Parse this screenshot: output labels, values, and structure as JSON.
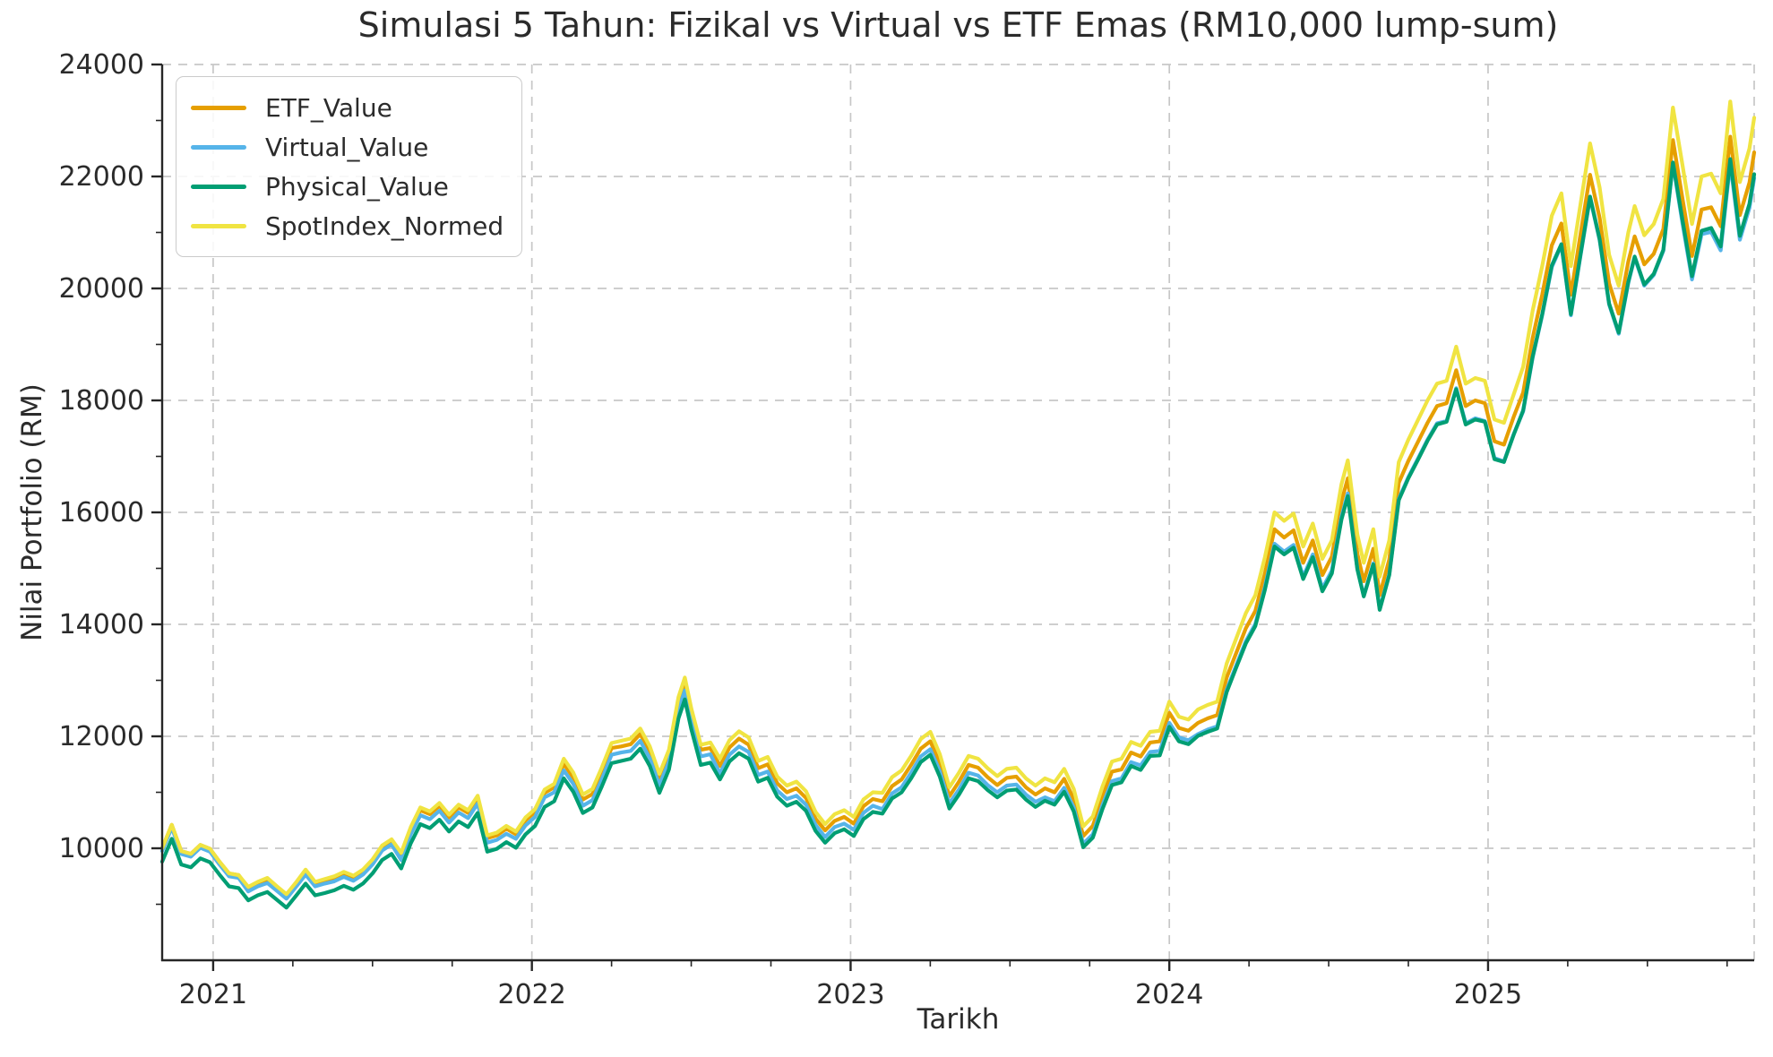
{
  "title": "Simulasi 5 Tahun: Fizikal vs Virtual vs ETF Emas (RM10,000 lump-sum)",
  "axes": {
    "xlabel": "Tarikh",
    "ylabel": "Nilai Portfolio (RM)",
    "xlim": [
      2020.84,
      2025.835
    ],
    "ylim": [
      8000,
      24000
    ],
    "x_major_ticks": [
      {
        "value": 2021,
        "label": "2021"
      },
      {
        "value": 2022,
        "label": "2022"
      },
      {
        "value": 2023,
        "label": "2023"
      },
      {
        "value": 2024,
        "label": "2024"
      },
      {
        "value": 2025,
        "label": "2025"
      }
    ],
    "x_minor_ticks": [
      2021.25,
      2021.5,
      2021.75,
      2022.25,
      2022.5,
      2022.75,
      2023.25,
      2023.5,
      2023.75,
      2024.25,
      2024.5,
      2024.75,
      2025.25,
      2025.5,
      2025.75
    ],
    "y_major_ticks": [
      {
        "value": 10000,
        "label": "10000"
      },
      {
        "value": 12000,
        "label": "12000"
      },
      {
        "value": 14000,
        "label": "14000"
      },
      {
        "value": 16000,
        "label": "16000"
      },
      {
        "value": 18000,
        "label": "18000"
      },
      {
        "value": 20000,
        "label": "20000"
      },
      {
        "value": 22000,
        "label": "22000"
      },
      {
        "value": 24000,
        "label": "24000"
      }
    ],
    "y_minor_ticks": [
      9000,
      11000,
      13000,
      15000,
      17000,
      19000,
      21000,
      23000
    ],
    "extra_x_gridlines": [
      2025.835
    ],
    "grid_style": "dashed"
  },
  "legend": {
    "position": "upper-left",
    "items": [
      {
        "label": "ETF_Value",
        "color": "#E69F00"
      },
      {
        "label": "Virtual_Value",
        "color": "#56B4E9"
      },
      {
        "label": "Physical_Value",
        "color": "#009E73"
      },
      {
        "label": "SpotIndex_Normed",
        "color": "#F0E442"
      }
    ]
  },
  "colors": {
    "background": "#ffffff",
    "grid": "#c7c7c7",
    "spine": "#262626",
    "text": "#2b2b2b"
  },
  "chart_data": {
    "type": "line",
    "title": "Simulasi 5 Tahun: Fizikal vs Virtual vs ETF Emas (RM10,000 lump-sum)",
    "xlabel": "Tarikh",
    "ylabel": "Nilai Portfolio (RM)",
    "xlim": [
      2020.84,
      2025.835
    ],
    "ylim": [
      8000,
      24000
    ],
    "x_unit": "decimal_year",
    "grid": true,
    "legend_position": "upper left",
    "x": [
      2020.84,
      2020.87,
      2020.9,
      2020.93,
      2020.96,
      2020.99,
      2021.02,
      2021.05,
      2021.08,
      2021.11,
      2021.14,
      2021.17,
      2021.2,
      2021.23,
      2021.26,
      2021.29,
      2021.32,
      2021.35,
      2021.38,
      2021.41,
      2021.44,
      2021.47,
      2021.5,
      2021.53,
      2021.56,
      2021.59,
      2021.62,
      2021.65,
      2021.68,
      2021.71,
      2021.74,
      2021.77,
      2021.8,
      2021.83,
      2021.86,
      2021.89,
      2021.92,
      2021.95,
      2021.98,
      2022.01,
      2022.04,
      2022.07,
      2022.1,
      2022.13,
      2022.16,
      2022.19,
      2022.22,
      2022.25,
      2022.28,
      2022.31,
      2022.34,
      2022.37,
      2022.4,
      2022.43,
      2022.46,
      2022.48,
      2022.5,
      2022.53,
      2022.56,
      2022.59,
      2022.62,
      2022.65,
      2022.68,
      2022.71,
      2022.74,
      2022.77,
      2022.8,
      2022.83,
      2022.86,
      2022.89,
      2022.92,
      2022.95,
      2022.98,
      2023.01,
      2023.04,
      2023.07,
      2023.1,
      2023.13,
      2023.16,
      2023.19,
      2023.22,
      2023.25,
      2023.28,
      2023.31,
      2023.34,
      2023.37,
      2023.4,
      2023.43,
      2023.46,
      2023.49,
      2023.52,
      2023.55,
      2023.58,
      2023.61,
      2023.64,
      2023.67,
      2023.7,
      2023.73,
      2023.76,
      2023.79,
      2023.82,
      2023.85,
      2023.88,
      2023.91,
      2023.94,
      2023.97,
      2024.0,
      2024.03,
      2024.06,
      2024.09,
      2024.12,
      2024.15,
      2024.18,
      2024.21,
      2024.24,
      2024.27,
      2024.3,
      2024.33,
      2024.36,
      2024.39,
      2024.42,
      2024.45,
      2024.48,
      2024.51,
      2024.54,
      2024.56,
      2024.59,
      2024.61,
      2024.64,
      2024.66,
      2024.69,
      2024.72,
      2024.75,
      2024.78,
      2024.81,
      2024.84,
      2024.87,
      2024.9,
      2024.93,
      2024.96,
      2024.99,
      2025.02,
      2025.05,
      2025.08,
      2025.11,
      2025.14,
      2025.17,
      2025.2,
      2025.23,
      2025.26,
      2025.29,
      2025.32,
      2025.35,
      2025.38,
      2025.41,
      2025.44,
      2025.46,
      2025.49,
      2025.52,
      2025.55,
      2025.58,
      2025.61,
      2025.64,
      2025.67,
      2025.7,
      2025.73,
      2025.76,
      2025.79,
      2025.82,
      2025.835
    ],
    "series": [
      {
        "name": "ETF_Value",
        "color": "#E69F00",
        "values": [
          10000,
          10420,
          9950,
          9900,
          10060,
          9990,
          9760,
          9550,
          9520,
          9280,
          9370,
          9440,
          9290,
          9150,
          9360,
          9590,
          9370,
          9420,
          9470,
          9550,
          9480,
          9590,
          9770,
          10020,
          10130,
          9870,
          10330,
          10680,
          10610,
          10760,
          10550,
          10730,
          10630,
          10890,
          10180,
          10230,
          10350,
          10250,
          10500,
          10650,
          10990,
          11090,
          11510,
          11260,
          10870,
          10970,
          11360,
          11790,
          11820,
          11860,
          12040,
          11730,
          11240,
          11670,
          12600,
          12950,
          12400,
          11760,
          11790,
          11470,
          11800,
          11960,
          11850,
          11430,
          11500,
          11160,
          11000,
          11070,
          10900,
          10530,
          10320,
          10490,
          10560,
          10440,
          10750,
          10880,
          10840,
          11110,
          11230,
          11490,
          11780,
          11910,
          11520,
          10930,
          11190,
          11490,
          11440,
          11270,
          11130,
          11260,
          11280,
          11090,
          10960,
          11070,
          11000,
          11240,
          10880,
          10220,
          10400,
          10920,
          11370,
          11410,
          11710,
          11640,
          11890,
          11910,
          12420,
          12150,
          12100,
          12240,
          12320,
          12380,
          13050,
          13490,
          13930,
          14240,
          14910,
          15700,
          15550,
          15680,
          15100,
          15500,
          14880,
          15210,
          16190,
          16610,
          15260,
          14770,
          15350,
          14520,
          15160,
          16530,
          16920,
          17260,
          17600,
          17900,
          17950,
          18540,
          17900,
          18000,
          17950,
          17270,
          17210,
          17700,
          18140,
          19110,
          19890,
          20770,
          21160,
          19890,
          20960,
          22030,
          21260,
          20090,
          19550,
          20480,
          20930,
          20430,
          20620,
          21060,
          22650,
          21600,
          20580,
          21410,
          21450,
          21110,
          22710,
          21310,
          21890,
          22430
        ]
      },
      {
        "name": "Virtual_Value",
        "color": "#56B4E9",
        "values": [
          9950,
          10370,
          9900,
          9850,
          10010,
          9940,
          9710,
          9500,
          9470,
          9230,
          9320,
          9380,
          9240,
          9100,
          9310,
          9530,
          9320,
          9370,
          9410,
          9490,
          9420,
          9530,
          9710,
          9960,
          10070,
          9790,
          10250,
          10590,
          10520,
          10670,
          10460,
          10640,
          10540,
          10800,
          10100,
          10150,
          10260,
          10170,
          10410,
          10560,
          10910,
          11000,
          11390,
          11150,
          10760,
          10860,
          11240,
          11670,
          11710,
          11740,
          11920,
          11610,
          11130,
          11550,
          12470,
          12820,
          12280,
          11640,
          11680,
          11340,
          11670,
          11820,
          11720,
          11310,
          11370,
          11030,
          10880,
          10940,
          10780,
          10420,
          10200,
          10380,
          10440,
          10330,
          10630,
          10760,
          10700,
          10980,
          11090,
          11350,
          11640,
          11770,
          11380,
          10800,
          11050,
          11350,
          11300,
          11130,
          11000,
          11120,
          11140,
          10960,
          10830,
          10910,
          10840,
          11080,
          10730,
          10080,
          10250,
          10770,
          11200,
          11250,
          11540,
          11480,
          11720,
          11740,
          12240,
          11980,
          11930,
          12040,
          12120,
          12180,
          12830,
          13270,
          13700,
          14010,
          14670,
          15440,
          15300,
          15420,
          14850,
          15250,
          14640,
          14960,
          15920,
          16340,
          14990,
          14510,
          15090,
          14270,
          14900,
          16240,
          16630,
          16960,
          17300,
          17590,
          17630,
          18220,
          17590,
          17680,
          17630,
          16970,
          16910,
          17390,
          17800,
          18760,
          19520,
          20380,
          20770,
          19520,
          20580,
          21620,
          20860,
          19710,
          19190,
          20100,
          20550,
          20050,
          20240,
          20670,
          22230,
          21160,
          20160,
          20970,
          21010,
          20680,
          22240,
          20870,
          21440,
          21970
        ]
      },
      {
        "name": "Physical_Value",
        "color": "#009E73",
        "values": [
          9760,
          10170,
          9710,
          9660,
          9820,
          9750,
          9530,
          9320,
          9290,
          9070,
          9160,
          9220,
          9080,
          8940,
          9150,
          9370,
          9160,
          9200,
          9250,
          9330,
          9260,
          9370,
          9550,
          9790,
          9900,
          9640,
          10090,
          10430,
          10360,
          10510,
          10300,
          10480,
          10380,
          10630,
          9940,
          9990,
          10110,
          10010,
          10250,
          10400,
          10740,
          10840,
          11250,
          11010,
          10630,
          10730,
          11110,
          11520,
          11560,
          11600,
          11780,
          11470,
          10990,
          11410,
          12320,
          12660,
          12130,
          11490,
          11530,
          11230,
          11550,
          11700,
          11600,
          11190,
          11260,
          10920,
          10760,
          10830,
          10670,
          10310,
          10100,
          10270,
          10340,
          10220,
          10520,
          10650,
          10620,
          10890,
          11000,
          11250,
          11540,
          11670,
          11280,
          10710,
          10960,
          11250,
          11200,
          11040,
          10910,
          11030,
          11050,
          10870,
          10740,
          10850,
          10780,
          11010,
          10660,
          10020,
          10190,
          10700,
          11130,
          11180,
          11470,
          11400,
          11650,
          11660,
          12170,
          11910,
          11860,
          12010,
          12080,
          12140,
          12790,
          13230,
          13660,
          13970,
          14620,
          15390,
          15250,
          15370,
          14810,
          15200,
          14590,
          14910,
          15870,
          16290,
          14980,
          14500,
          15070,
          14260,
          14880,
          16220,
          16610,
          16940,
          17280,
          17570,
          17620,
          18200,
          17570,
          17660,
          17620,
          16950,
          16900,
          17380,
          17820,
          18780,
          19540,
          20410,
          20790,
          19540,
          20600,
          21640,
          20880,
          19730,
          19210,
          20120,
          20570,
          20070,
          20260,
          20690,
          22250,
          21220,
          20220,
          21030,
          21080,
          20750,
          22310,
          20940,
          21510,
          22040
        ]
      },
      {
        "name": "SpotIndex_Normed",
        "color": "#F0E442",
        "values": [
          10000,
          10420,
          9950,
          9900,
          10060,
          9990,
          9760,
          9550,
          9520,
          9310,
          9400,
          9470,
          9320,
          9180,
          9390,
          9620,
          9400,
          9450,
          9500,
          9580,
          9510,
          9620,
          9800,
          10050,
          10160,
          9920,
          10380,
          10730,
          10660,
          10810,
          10600,
          10780,
          10680,
          10940,
          10230,
          10280,
          10400,
          10300,
          10550,
          10700,
          11050,
          11150,
          11600,
          11350,
          10960,
          11060,
          11450,
          11880,
          11920,
          11960,
          12140,
          11820,
          11330,
          11760,
          12700,
          13050,
          12500,
          11850,
          11890,
          11600,
          11930,
          12090,
          11980,
          11560,
          11630,
          11280,
          11120,
          11190,
          11020,
          10650,
          10430,
          10610,
          10680,
          10560,
          10870,
          11000,
          10990,
          11270,
          11390,
          11650,
          11950,
          12080,
          11680,
          11090,
          11350,
          11650,
          11600,
          11430,
          11290,
          11420,
          11440,
          11250,
          11120,
          11250,
          11180,
          11420,
          11060,
          10390,
          10570,
          11100,
          11550,
          11600,
          11900,
          11830,
          12080,
          12100,
          12620,
          12350,
          12300,
          12480,
          12560,
          12620,
          13300,
          13750,
          14200,
          14520,
          15200,
          16000,
          15850,
          15980,
          15390,
          15800,
          15170,
          15500,
          16500,
          16930,
          15600,
          15100,
          15700,
          14850,
          15500,
          16900,
          17300,
          17650,
          18000,
          18300,
          18350,
          18960,
          18300,
          18400,
          18350,
          17660,
          17600,
          18100,
          18600,
          19600,
          20400,
          21300,
          21700,
          20400,
          21500,
          22590,
          21800,
          20600,
          20050,
          21000,
          21470,
          20950,
          21150,
          21600,
          23230,
          22200,
          21150,
          22000,
          22050,
          21700,
          23340,
          21900,
          22500,
          23050
        ]
      }
    ],
    "draw_order": [
      "ETF_Value",
      "Virtual_Value",
      "Physical_Value",
      "SpotIndex_Normed"
    ]
  }
}
